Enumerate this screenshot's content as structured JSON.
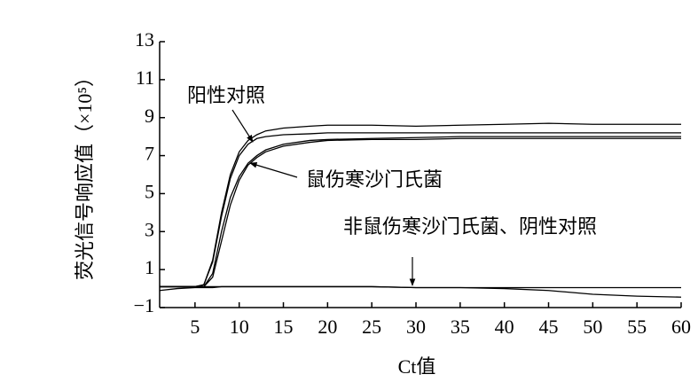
{
  "chart_data": {
    "type": "line",
    "x_label": "Ct值",
    "y_label": "荧光信号响应值（×10⁵）",
    "annotations": [
      "阳性对照",
      "鼠伤寒沙门氏菌",
      "非鼠伤寒沙门氏菌、阴性对照"
    ],
    "xlim": [
      1,
      60
    ],
    "xticks": [
      5,
      10,
      15,
      20,
      25,
      30,
      35,
      40,
      45,
      50,
      55,
      60
    ],
    "ylim": [
      -1,
      13
    ],
    "yticks": [
      {
        "value": -1,
        "label": "−1"
      },
      1,
      3,
      5,
      7,
      9,
      11,
      13
    ],
    "x": [
      1,
      3,
      5,
      6,
      7,
      8,
      9,
      10,
      11,
      12,
      13,
      15,
      18,
      20,
      25,
      30,
      35,
      40,
      45,
      50,
      55,
      60
    ],
    "series": [
      {
        "color": "#000000",
        "values": [
          0.1,
          0.1,
          0.1,
          0.2,
          1.5,
          4.0,
          6.0,
          7.2,
          7.8,
          8.1,
          8.3,
          8.45,
          8.55,
          8.6,
          8.6,
          8.55,
          8.6,
          8.65,
          8.7,
          8.65,
          8.65,
          8.65
        ]
      },
      {
        "color": "#000000",
        "values": [
          0.1,
          0.1,
          0.1,
          0.2,
          1.4,
          3.8,
          5.8,
          7.0,
          7.6,
          7.9,
          8.0,
          8.1,
          8.15,
          8.2,
          8.2,
          8.2,
          8.2,
          8.2,
          8.2,
          8.2,
          8.2,
          8.2
        ]
      },
      {
        "color": "#000000",
        "values": [
          0.1,
          0.1,
          0.1,
          0.1,
          0.8,
          3.0,
          4.8,
          5.9,
          6.6,
          7.0,
          7.3,
          7.6,
          7.8,
          7.85,
          7.9,
          7.95,
          8.0,
          8.0,
          8.0,
          8.0,
          8.0,
          8.0
        ]
      },
      {
        "color": "#000000",
        "values": [
          0.1,
          0.1,
          0.1,
          0.1,
          0.6,
          2.5,
          4.4,
          5.7,
          6.5,
          6.9,
          7.2,
          7.5,
          7.7,
          7.8,
          7.85,
          7.85,
          7.9,
          7.9,
          7.9,
          7.9,
          7.9,
          7.9
        ]
      },
      {
        "color": "#000000",
        "values": [
          -0.1,
          0.0,
          0.05,
          0.05,
          0.05,
          0.1,
          0.1,
          0.1,
          0.1,
          0.1,
          0.1,
          0.1,
          0.1,
          0.1,
          0.1,
          0.05,
          0.05,
          0.05,
          0.05,
          0.05,
          0.05,
          0.05
        ]
      },
      {
        "color": "#000000",
        "values": [
          0.1,
          0.1,
          0.1,
          0.1,
          0.1,
          0.1,
          0.1,
          0.1,
          0.1,
          0.1,
          0.1,
          0.1,
          0.1,
          0.1,
          0.1,
          0.05,
          0.05,
          0.0,
          -0.1,
          -0.3,
          -0.4,
          -0.45
        ]
      }
    ]
  }
}
